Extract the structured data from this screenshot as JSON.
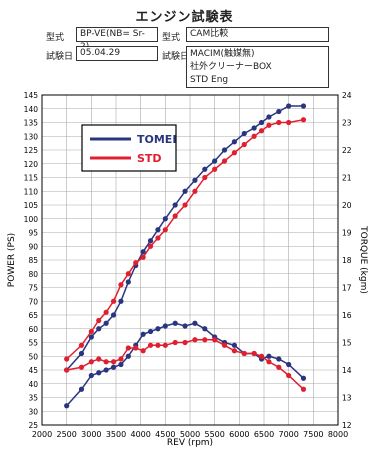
{
  "header": {
    "title": "エンジン試験表",
    "model_label": "型式",
    "model_value": "BP-VE(NB= Sr-2)",
    "type_label": "型式",
    "type_value": "CAM比較",
    "date_label": "試験日",
    "date_value": "05.04.29",
    "cond_label": "試験日",
    "cond_lines": [
      "MACIM(触媒無)",
      "社外クリーナーBOX",
      "STD Eng"
    ]
  },
  "chart_data": {
    "type": "line",
    "xlabel": "REV (rpm)",
    "ylabel": "POWER (PS)",
    "y2label": "TORQUE (kgm)",
    "xlim": [
      2000,
      8000
    ],
    "ylim": [
      25,
      145
    ],
    "y2lim": [
      12,
      24
    ],
    "xticks": [
      2000,
      2500,
      3000,
      3500,
      4000,
      4500,
      5000,
      5500,
      6000,
      6500,
      7000,
      7500,
      8000
    ],
    "yticks": [
      25,
      30,
      35,
      40,
      45,
      50,
      55,
      60,
      65,
      70,
      75,
      80,
      85,
      90,
      95,
      100,
      105,
      110,
      115,
      120,
      125,
      130,
      135,
      140,
      145
    ],
    "y2ticks": [
      12,
      13,
      14,
      15,
      16,
      17,
      18,
      19,
      20,
      21,
      22,
      23,
      24
    ],
    "grid": true,
    "legend_position": "top-left",
    "series": [
      {
        "name": "TOMEI",
        "kind": "power",
        "color": "#2a3580",
        "x": [
          2500,
          2800,
          3000,
          3150,
          3300,
          3450,
          3600,
          3750,
          3900,
          4050,
          4200,
          4350,
          4500,
          4700,
          4900,
          5100,
          5300,
          5500,
          5700,
          5900,
          6100,
          6300,
          6450,
          6600,
          6800,
          7000,
          7300
        ],
        "y": [
          45,
          51,
          57,
          60,
          62,
          65,
          70,
          77,
          83,
          88,
          92,
          96,
          100,
          105,
          110,
          114,
          118,
          121,
          125,
          128,
          131,
          133,
          135,
          137,
          139,
          141,
          141
        ]
      },
      {
        "name": "STD",
        "kind": "power",
        "color": "#e02030",
        "x": [
          2500,
          2800,
          3000,
          3150,
          3300,
          3450,
          3600,
          3750,
          3900,
          4050,
          4200,
          4350,
          4500,
          4700,
          4900,
          5100,
          5300,
          5500,
          5700,
          5900,
          6100,
          6300,
          6450,
          6600,
          6800,
          7000,
          7300
        ],
        "y": [
          49,
          54,
          59,
          63,
          66,
          70,
          76,
          80,
          84,
          86,
          90,
          93,
          96,
          101,
          105,
          110,
          115,
          118,
          121,
          124,
          127,
          130,
          132,
          134,
          135,
          135,
          136
        ]
      },
      {
        "name": "TOMEI",
        "kind": "torque",
        "color": "#2a3580",
        "x": [
          2500,
          2800,
          3000,
          3150,
          3300,
          3450,
          3600,
          3750,
          3900,
          4050,
          4200,
          4350,
          4500,
          4700,
          4900,
          5100,
          5300,
          5500,
          5700,
          5900,
          6100,
          6300,
          6450,
          6600,
          6800,
          7000,
          7300
        ],
        "y": [
          12.7,
          13.3,
          13.8,
          13.9,
          14.0,
          14.1,
          14.2,
          14.5,
          14.9,
          15.3,
          15.4,
          15.5,
          15.6,
          15.7,
          15.6,
          15.7,
          15.5,
          15.2,
          15.0,
          14.9,
          14.6,
          14.6,
          14.4,
          14.5,
          14.4,
          14.2,
          13.7
        ]
      },
      {
        "name": "STD",
        "kind": "torque",
        "color": "#e02030",
        "x": [
          2500,
          2800,
          3000,
          3150,
          3300,
          3450,
          3600,
          3750,
          3900,
          4050,
          4200,
          4350,
          4500,
          4700,
          4900,
          5100,
          5300,
          5500,
          5700,
          5900,
          6100,
          6300,
          6450,
          6600,
          6800,
          7000,
          7300
        ],
        "y": [
          14.0,
          14.1,
          14.3,
          14.4,
          14.3,
          14.3,
          14.4,
          14.8,
          14.8,
          14.7,
          14.9,
          14.9,
          14.9,
          15.0,
          15.0,
          15.1,
          15.1,
          15.1,
          14.9,
          14.7,
          14.6,
          14.6,
          14.5,
          14.3,
          14.1,
          13.8,
          13.3
        ]
      }
    ]
  }
}
